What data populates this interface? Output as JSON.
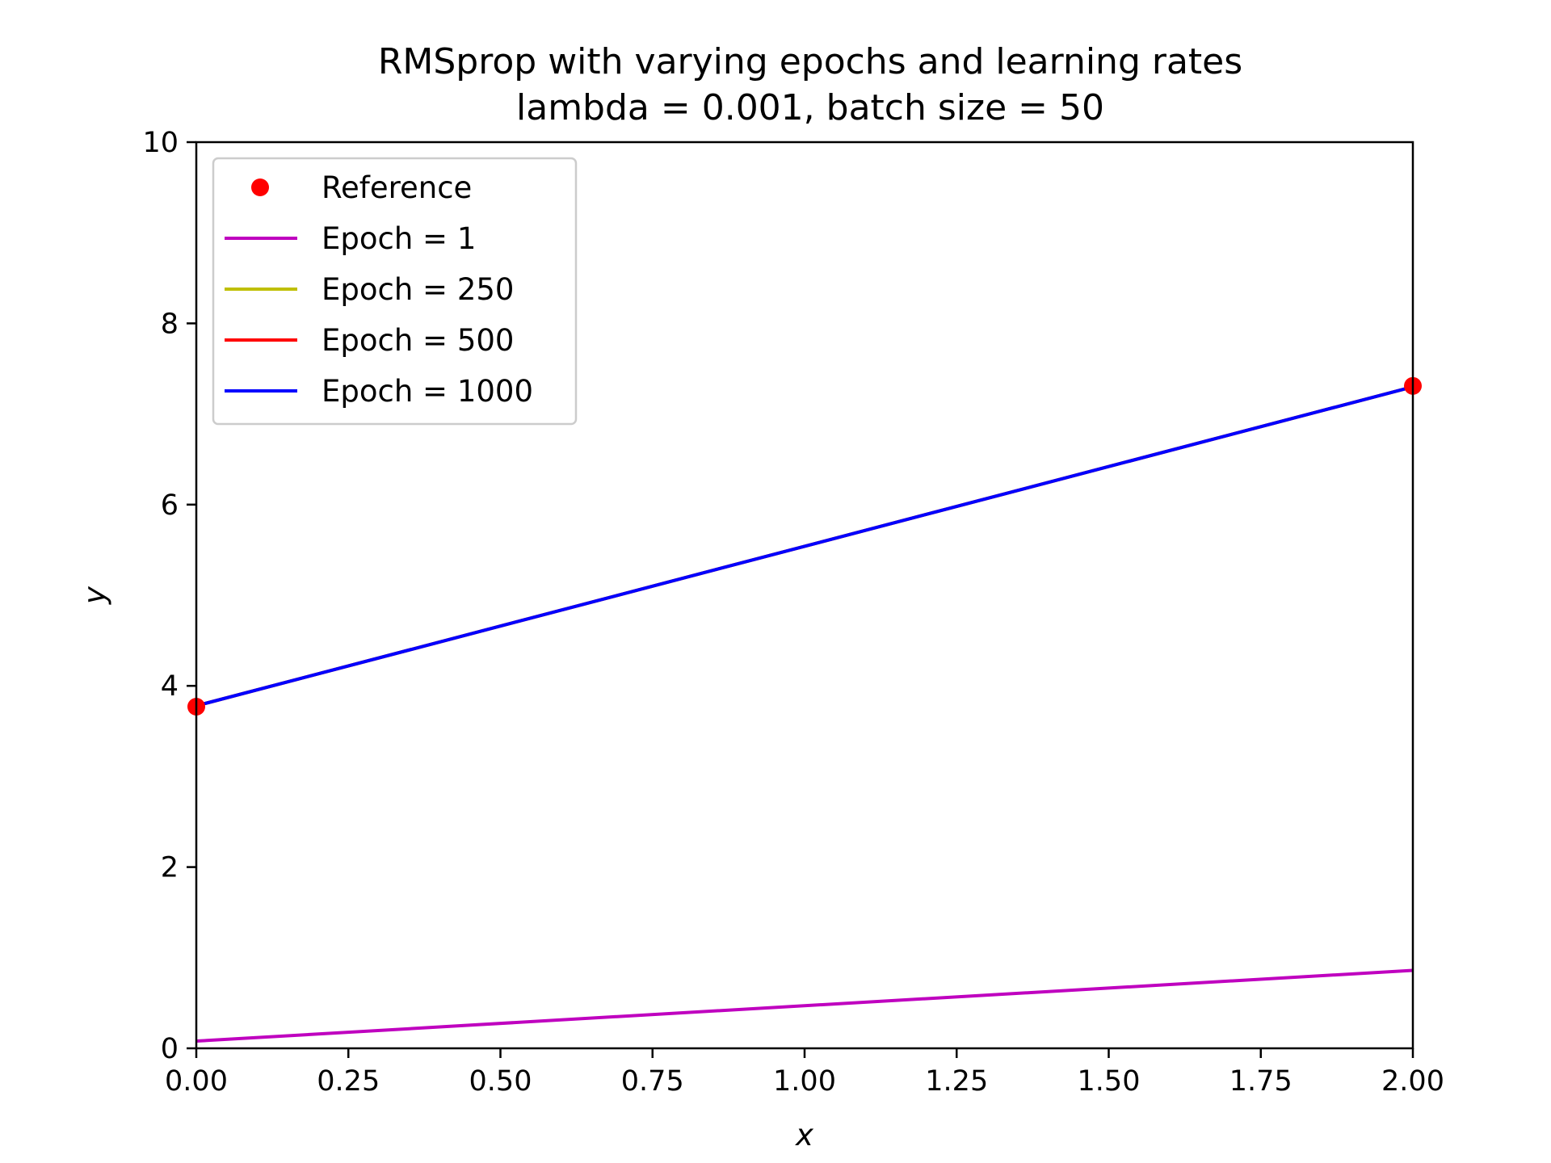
{
  "chart_data": {
    "type": "line",
    "title": "RMSprop with varying epochs and learning rates",
    "subtitle": "lambda = 0.001, batch size = 50",
    "xlabel": "x",
    "ylabel": "y",
    "xlim": [
      0,
      2
    ],
    "ylim": [
      0,
      10
    ],
    "xticks": [
      0,
      0.25,
      0.5,
      0.75,
      1.0,
      1.25,
      1.5,
      1.75,
      2.0
    ],
    "xtick_labels": [
      "0.00",
      "0.25",
      "0.50",
      "0.75",
      "1.00",
      "1.25",
      "1.50",
      "1.75",
      "2.00"
    ],
    "yticks": [
      0,
      2,
      4,
      6,
      8,
      10
    ],
    "ytick_labels": [
      "0",
      "2",
      "4",
      "6",
      "8",
      "10"
    ],
    "grid": false,
    "legend_position": "top-left",
    "series": [
      {
        "name": "Reference",
        "kind": "scatter",
        "color": "#ff0000",
        "x": [
          0,
          2
        ],
        "y": [
          3.77,
          7.31
        ]
      },
      {
        "name": "Epoch = 1",
        "kind": "line",
        "color": "#bf00bf",
        "x": [
          0,
          2
        ],
        "y": [
          0.08,
          0.86
        ]
      },
      {
        "name": "Epoch = 250",
        "kind": "line",
        "color": "#bfbf00",
        "x": [
          0,
          2
        ],
        "y": [
          3.78,
          7.3
        ]
      },
      {
        "name": "Epoch = 500",
        "kind": "line",
        "color": "#ff0000",
        "x": [
          0,
          2
        ],
        "y": [
          3.78,
          7.3
        ]
      },
      {
        "name": "Epoch = 1000",
        "kind": "line",
        "color": "#0000ff",
        "x": [
          0,
          2
        ],
        "y": [
          3.78,
          7.3
        ]
      }
    ]
  }
}
